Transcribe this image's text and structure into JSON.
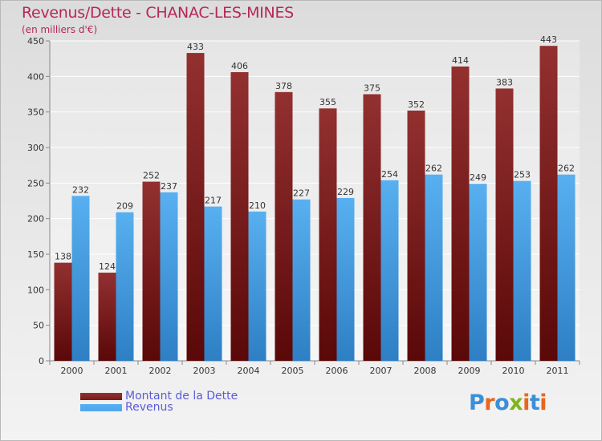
{
  "title": "Revenus/Dette - CHANAC-LES-MINES",
  "subtitle": "(en milliers d'€)",
  "chart_data": {
    "type": "bar",
    "categories": [
      "2000",
      "2001",
      "2002",
      "2003",
      "2004",
      "2005",
      "2006",
      "2007",
      "2008",
      "2009",
      "2010",
      "2011"
    ],
    "series": [
      {
        "name": "Montant de la Dette",
        "values": [
          138,
          124,
          252,
          433,
          406,
          378,
          355,
          375,
          352,
          414,
          383,
          443
        ],
        "color": "#7a1a1a"
      },
      {
        "name": "Revenus",
        "values": [
          232,
          209,
          237,
          217,
          210,
          227,
          229,
          254,
          262,
          249,
          253,
          262
        ],
        "color": "#4ea6ec"
      }
    ],
    "ylim": [
      0,
      450
    ],
    "yticks": [
      0,
      50,
      100,
      150,
      200,
      250,
      300,
      350,
      400,
      450
    ],
    "grid": true,
    "legend_position": "bottom-left"
  },
  "logo": {
    "text": "Proxiti",
    "letter_colors": [
      "#3a8fd8",
      "#e8671e",
      "#3a8fd8",
      "#7fb51b",
      "#e8671e",
      "#3a8fd8",
      "#e8671e"
    ]
  }
}
